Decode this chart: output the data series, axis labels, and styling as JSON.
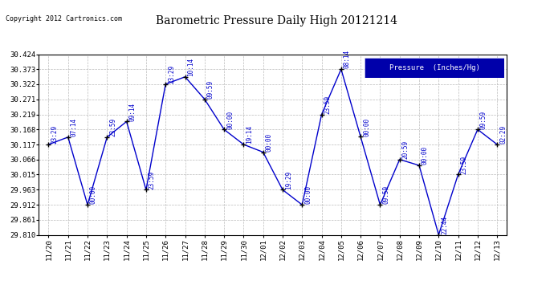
{
  "title": "Barometric Pressure Daily High 20121214",
  "copyright": "Copyright 2012 Cartronics.com",
  "legend_label": "Pressure  (Inches/Hg)",
  "background_color": "#ffffff",
  "plot_background": "#ffffff",
  "line_color": "#0000cc",
  "marker_color": "#000000",
  "grid_color": "#bbbbbb",
  "ylim": [
    29.81,
    30.424
  ],
  "yticks": [
    29.81,
    29.861,
    29.912,
    29.963,
    30.015,
    30.066,
    30.117,
    30.168,
    30.219,
    30.271,
    30.322,
    30.373,
    30.424
  ],
  "dates": [
    "11/20",
    "11/21",
    "11/22",
    "11/23",
    "11/24",
    "11/25",
    "11/26",
    "11/27",
    "11/28",
    "11/29",
    "11/30",
    "12/01",
    "12/02",
    "12/03",
    "12/04",
    "12/05",
    "12/06",
    "12/07",
    "12/08",
    "12/09",
    "12/10",
    "12/11",
    "12/12",
    "12/13"
  ],
  "values": [
    30.117,
    30.142,
    29.912,
    30.142,
    30.195,
    29.963,
    30.322,
    30.347,
    30.271,
    30.168,
    30.117,
    30.091,
    29.963,
    29.912,
    30.219,
    30.373,
    30.143,
    29.912,
    30.066,
    30.046,
    29.81,
    30.015,
    30.168,
    30.117
  ],
  "annotations": [
    "23:29",
    "07:14",
    "00:00",
    "23:59",
    "09:14",
    "23:59",
    "23:29",
    "10:14",
    "09:59",
    "00:00",
    "19:14",
    "00:00",
    "19:29",
    "00:00",
    "23:59",
    "08:14",
    "00:00",
    "09:59",
    "20:59",
    "00:00",
    "22:44",
    "23:59",
    "09:59",
    "02:29"
  ]
}
